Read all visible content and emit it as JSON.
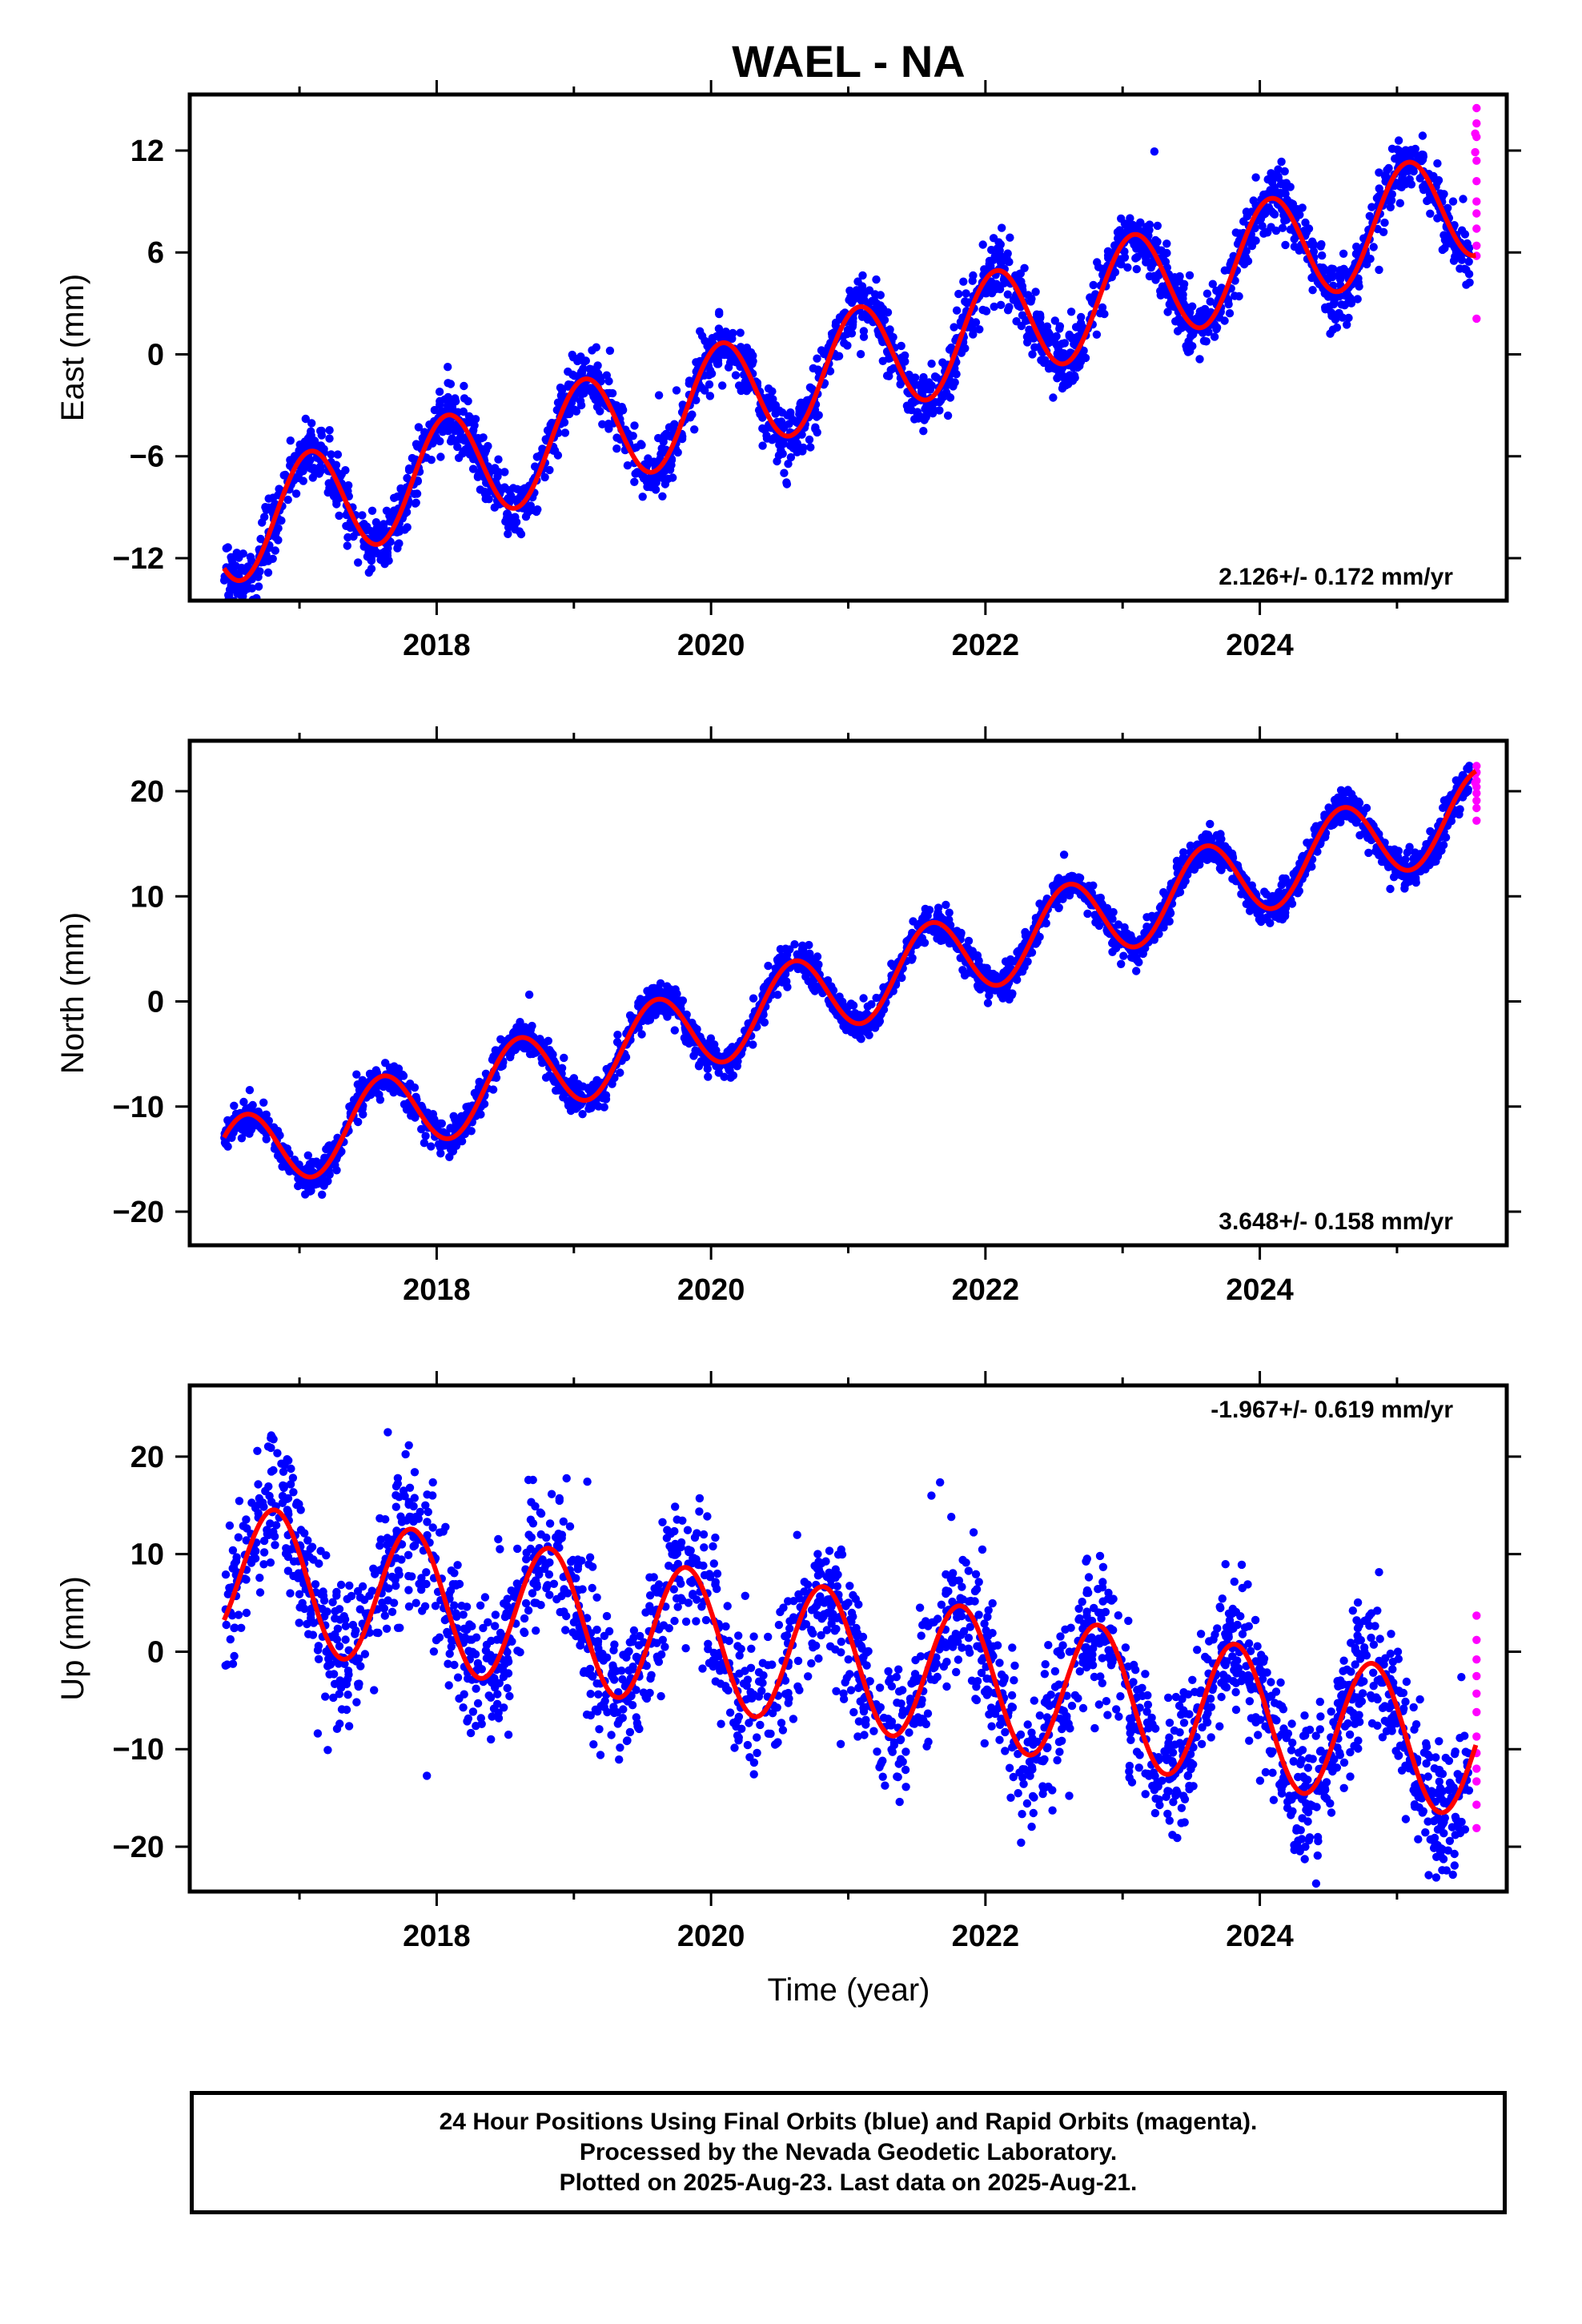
{
  "title": "WAEL - NA",
  "xlabel": "Time (year)",
  "footer": {
    "line1": "24 Hour Positions Using Final Orbits (blue) and Rapid Orbits (magenta).",
    "line2": "Processed by the Nevada Geodetic Laboratory.",
    "line3": "Plotted on 2025-Aug-23. Last data on 2025-Aug-21."
  },
  "colors": {
    "final": "#0000ff",
    "rapid": "#ff00ff",
    "model": "#ff0000"
  },
  "chart_data": [
    {
      "type": "scatter",
      "ylabel": "East (mm)",
      "rate_text": "2.126+/- 0.172 mm/yr",
      "xlim": [
        2016.2,
        2025.8
      ],
      "ylim": [
        -14.5,
        15.3
      ],
      "xticks": [
        2018,
        2020,
        2022,
        2024
      ],
      "yticks": [
        -12,
        -6,
        0,
        6,
        12
      ],
      "yticklabels": [
        "−12",
        "−6",
        "0",
        "6",
        "12"
      ],
      "model": {
        "t0": 2016.5,
        "y0": -10.2,
        "rate": 2.126,
        "annual_sin": -1.5,
        "annual_cos": -2.9,
        "semi_sin": 0.0,
        "semi_cos": 0.0,
        "step": null
      },
      "final": {
        "start": 2016.45,
        "end": 2025.53,
        "n": 2600,
        "noise": 0.9,
        "outlier_rate": 0.003
      },
      "rapid": [
        [
          2025.58,
          14.5
        ],
        [
          2025.58,
          13.6
        ],
        [
          2025.58,
          12.8
        ],
        [
          2025.58,
          11.4
        ],
        [
          2025.58,
          10.2
        ],
        [
          2025.58,
          9.0
        ],
        [
          2025.58,
          8.3
        ],
        [
          2025.58,
          7.4
        ],
        [
          2025.58,
          6.4
        ],
        [
          2025.58,
          5.8
        ],
        [
          2025.58,
          2.1
        ],
        [
          2025.57,
          13.0
        ],
        [
          2025.57,
          11.9
        ]
      ]
    },
    {
      "type": "scatter",
      "ylabel": "North (mm)",
      "rate_text": "3.648+/- 0.158 mm/yr",
      "xlim": [
        2016.2,
        2025.8
      ],
      "ylim": [
        -23.2,
        24.8
      ],
      "xticks": [
        2018,
        2020,
        2022,
        2024
      ],
      "yticks": [
        -20,
        -10,
        0,
        10,
        20
      ],
      "yticklabels": [
        "−20",
        "−10",
        "0",
        "10",
        "20"
      ],
      "model": {
        "t0": 2016.5,
        "y0": -15.0,
        "rate": 3.648,
        "annual_sin": 2.3,
        "annual_cos": 3.1,
        "semi_sin": 0.0,
        "semi_cos": 0.0,
        "step": null
      },
      "final": {
        "start": 2016.45,
        "end": 2025.53,
        "n": 2600,
        "noise": 0.8,
        "outlier_rate": 0.003
      },
      "rapid": [
        [
          2025.58,
          22.4
        ],
        [
          2025.58,
          21.8
        ],
        [
          2025.58,
          21.0
        ],
        [
          2025.58,
          20.4
        ],
        [
          2025.58,
          19.8
        ],
        [
          2025.58,
          19.1
        ],
        [
          2025.58,
          18.4
        ],
        [
          2025.58,
          17.2
        ],
        [
          2025.57,
          20.8
        ],
        [
          2025.57,
          21.6
        ]
      ]
    },
    {
      "type": "scatter",
      "ylabel": "Up (mm)",
      "rate_text": "-1.967+/- 0.619 mm/yr",
      "xlim": [
        2016.2,
        2025.8
      ],
      "ylim": [
        -24.6,
        27.3
      ],
      "xticks": [
        2018,
        2020,
        2022,
        2024
      ],
      "yticks": [
        -20,
        -10,
        0,
        10,
        20
      ],
      "yticklabels": [
        "−20",
        "−10",
        "0",
        "10",
        "20"
      ],
      "model": {
        "t0": 2016.5,
        "y0": 8.0,
        "rate": -1.967,
        "annual_sin": 6.5,
        "annual_cos": -3.0,
        "semi_sin": 0.0,
        "semi_cos": 0.0,
        "step": null
      },
      "final": {
        "start": 2016.45,
        "end": 2025.53,
        "n": 2400,
        "noise": 3.6,
        "outlier_rate": 0.01
      },
      "rapid": [
        [
          2025.58,
          3.7
        ],
        [
          2025.58,
          1.2
        ],
        [
          2025.58,
          -0.8
        ],
        [
          2025.58,
          -2.5
        ],
        [
          2025.58,
          -4.3
        ],
        [
          2025.58,
          -6.2
        ],
        [
          2025.58,
          -8.7
        ],
        [
          2025.58,
          -10.4
        ],
        [
          2025.58,
          -12.0
        ],
        [
          2025.58,
          -13.3
        ],
        [
          2025.58,
          -15.7
        ],
        [
          2025.58,
          -18.1
        ]
      ]
    }
  ]
}
